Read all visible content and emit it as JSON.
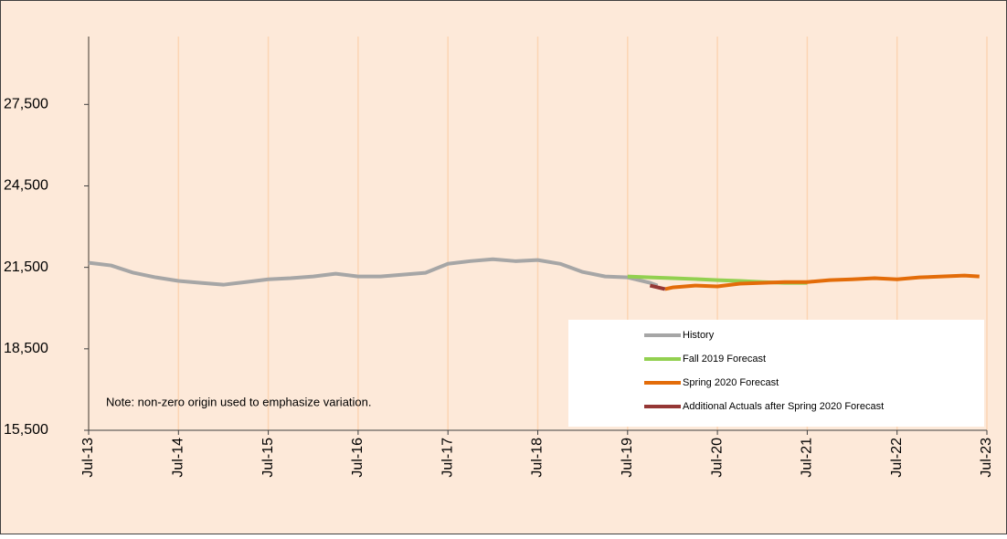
{
  "chart_data": {
    "type": "line",
    "note": "Note: non-zero origin used to emphasize variation.",
    "xlim": [
      "2013-07",
      "2023-07"
    ],
    "xticks": [
      {
        "value": "2013-07",
        "label": "Jul-13"
      },
      {
        "value": "2014-07",
        "label": "Jul-14"
      },
      {
        "value": "2015-07",
        "label": "Jul-15"
      },
      {
        "value": "2016-07",
        "label": "Jul-16"
      },
      {
        "value": "2017-07",
        "label": "Jul-17"
      },
      {
        "value": "2018-07",
        "label": "Jul-18"
      },
      {
        "value": "2019-07",
        "label": "Jul-19"
      },
      {
        "value": "2020-07",
        "label": "Jul-20"
      },
      {
        "value": "2021-07",
        "label": "Jul-21"
      },
      {
        "value": "2022-07",
        "label": "Jul-22"
      },
      {
        "value": "2023-07",
        "label": "Jul-23"
      }
    ],
    "ylim": [
      15500,
      30000
    ],
    "yticks": [
      {
        "value": 15500,
        "label": "15,500"
      },
      {
        "value": 18500,
        "label": "18,500"
      },
      {
        "value": 21500,
        "label": "21,500"
      },
      {
        "value": 24500,
        "label": "24,500"
      },
      {
        "value": 27500,
        "label": "27,500"
      }
    ],
    "grid": true,
    "series": [
      {
        "name": "History",
        "color": "#a6a6a6",
        "x": [
          "2013-07",
          "2013-10",
          "2014-01",
          "2014-04",
          "2014-07",
          "2014-10",
          "2015-01",
          "2015-04",
          "2015-07",
          "2015-10",
          "2016-01",
          "2016-04",
          "2016-07",
          "2016-10",
          "2017-01",
          "2017-04",
          "2017-07",
          "2017-10",
          "2018-01",
          "2018-04",
          "2018-07",
          "2018-10",
          "2019-01",
          "2019-04",
          "2019-07",
          "2019-10",
          "2019-11"
        ],
        "values": [
          21670,
          21570,
          21300,
          21130,
          21000,
          20930,
          20860,
          20960,
          21060,
          21100,
          21165,
          21265,
          21165,
          21165,
          21230,
          21300,
          21630,
          21730,
          21800,
          21730,
          21770,
          21630,
          21330,
          21165,
          21130,
          20930,
          20830
        ]
      },
      {
        "name": "Fall 2019 Forecast",
        "color": "#92d050",
        "x": [
          "2019-07",
          "2019-10",
          "2020-01",
          "2020-04",
          "2020-07",
          "2020-10",
          "2021-01",
          "2021-04",
          "2021-07"
        ],
        "values": [
          21165,
          21130,
          21100,
          21070,
          21030,
          21000,
          20960,
          20930,
          20930
        ]
      },
      {
        "name": "Spring 2020 Forecast",
        "color": "#e36c09",
        "x": [
          "2019-12",
          "2020-01",
          "2020-04",
          "2020-07",
          "2020-10",
          "2021-01",
          "2021-04",
          "2021-07",
          "2021-10",
          "2022-01",
          "2022-04",
          "2022-07",
          "2022-10",
          "2023-01",
          "2023-04",
          "2023-06"
        ],
        "values": [
          20700,
          20760,
          20830,
          20800,
          20900,
          20930,
          20960,
          20960,
          21030,
          21060,
          21100,
          21060,
          21130,
          21165,
          21200,
          21165
        ]
      },
      {
        "name": "Additional Actuals after Spring 2020 Forecast",
        "color": "#953735",
        "x": [
          "2019-10",
          "2019-12"
        ],
        "values": [
          20830,
          20700
        ]
      }
    ]
  }
}
